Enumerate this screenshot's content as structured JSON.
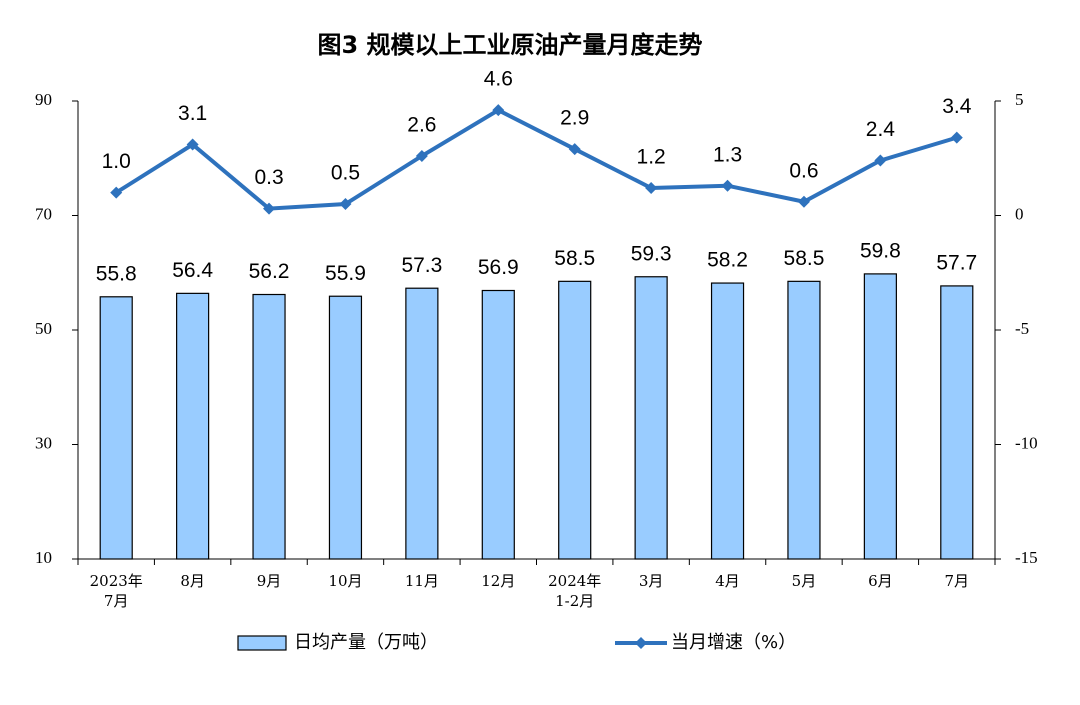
{
  "chart_data": {
    "type": "bar+line",
    "title": "图3  规模以上工业原油产量月度走势",
    "categories": [
      "2023年\n7月",
      "8月",
      "9月",
      "10月",
      "11月",
      "12月",
      "2024年\n1-2月",
      "3月",
      "4月",
      "5月",
      "6月",
      "7月"
    ],
    "series": [
      {
        "name": "日均产量（万吨）",
        "type": "bar",
        "color": "#99ccff",
        "axis": "y",
        "values": [
          55.8,
          56.4,
          56.2,
          55.9,
          57.3,
          56.9,
          58.5,
          59.3,
          58.2,
          58.5,
          59.8,
          57.7
        ]
      },
      {
        "name": "当月增速（%）",
        "type": "line",
        "color": "#2e72bd",
        "axis": "y2",
        "values": [
          1.0,
          3.1,
          0.3,
          0.5,
          2.6,
          4.6,
          2.9,
          1.2,
          1.3,
          0.6,
          2.4,
          3.4
        ],
        "value_labels": [
          "1.0",
          "3.1",
          "0.3",
          "0.5",
          "2.6",
          "4.6",
          "2.9",
          "1.2",
          "1.3",
          "0.6",
          "2.4",
          "3.4"
        ]
      }
    ],
    "ylim": [
      10,
      90
    ],
    "yticks": [
      10,
      30,
      50,
      70,
      90
    ],
    "y2lim": [
      -15,
      5
    ],
    "y2ticks": [
      -15,
      -10,
      -5,
      0,
      5
    ],
    "grid": false,
    "legend": "bottom"
  }
}
